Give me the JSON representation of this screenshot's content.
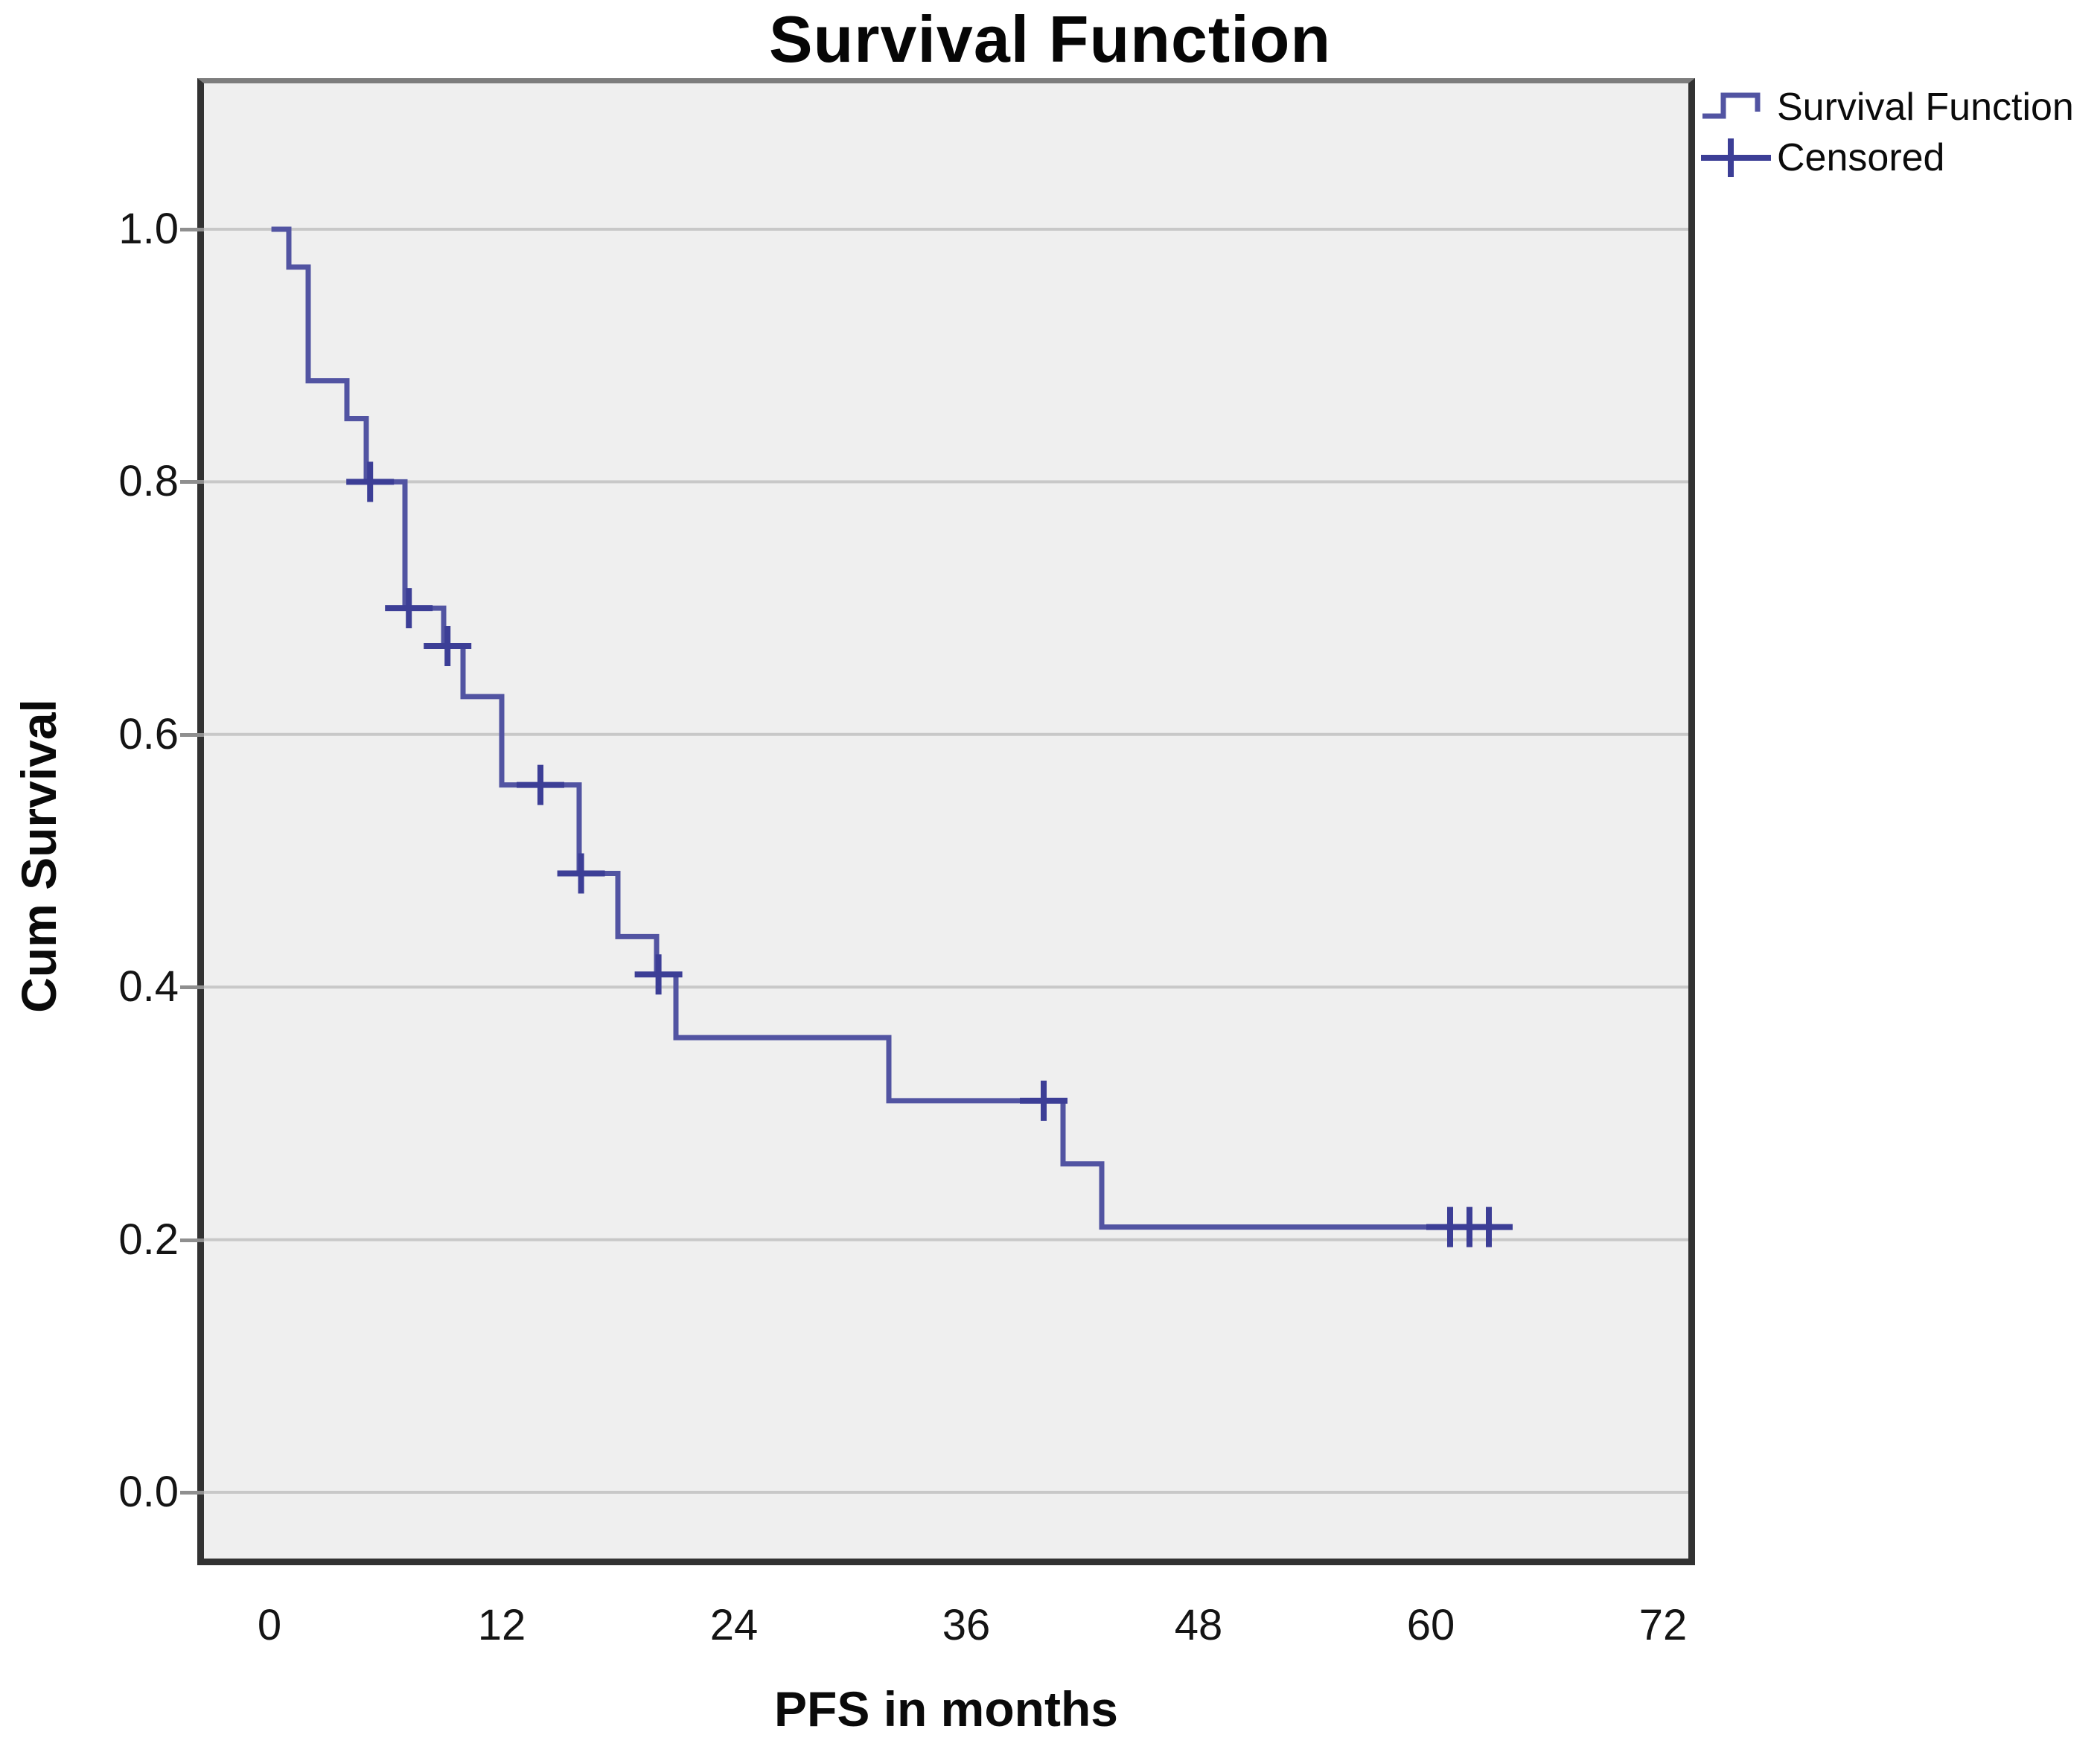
{
  "title": "Survival Function",
  "axes": {
    "x_label": "PFS in months",
    "y_label": "Cum Survival"
  },
  "legend": [
    {
      "label": "Survival Function",
      "marker": "step-line"
    },
    {
      "label": "Censored",
      "marker": "plus"
    }
  ],
  "chart_data": {
    "type": "line",
    "subtype": "kaplan-meier-survival-step",
    "title": "Survival Function",
    "xlabel": "PFS in months",
    "ylabel": "Cum Survival",
    "xlim": [
      0,
      72
    ],
    "ylim": [
      0.0,
      1.0
    ],
    "x_ticks": [
      {
        "label": "0",
        "value": 0
      },
      {
        "label": "12",
        "value": 12
      },
      {
        "label": "24",
        "value": 24
      },
      {
        "label": "36",
        "value": 36
      },
      {
        "label": "48",
        "value": 48
      },
      {
        "label": "60",
        "value": 60
      },
      {
        "label": "72",
        "value": 72
      }
    ],
    "y_ticks": [
      {
        "label": "1.0",
        "value": 1.0
      },
      {
        "label": "0.8",
        "value": 0.8
      },
      {
        "label": "0.6",
        "value": 0.6
      },
      {
        "label": "0.4",
        "value": 0.4
      },
      {
        "label": "0.2",
        "value": 0.2
      },
      {
        "label": "0.0",
        "value": 0.0
      }
    ],
    "grid": "horizontal-only",
    "legend_position": "outside-top-right",
    "plot_background": "#EFEFEF",
    "colors": {
      "line": "#5254A2",
      "censor": "#3C3E96",
      "grid": "#C8C8C8",
      "frame": "#323232",
      "text": "#0B0B0B"
    },
    "series": [
      {
        "name": "Survival Function",
        "type": "step-after",
        "start": {
          "time": 0.1,
          "survival": 1.0
        },
        "steps": [
          [
            1,
            0.97
          ],
          [
            2,
            0.88
          ],
          [
            4,
            0.85
          ],
          [
            5,
            0.8
          ],
          [
            7,
            0.7
          ],
          [
            9,
            0.67
          ],
          [
            10,
            0.63
          ],
          [
            12,
            0.56
          ],
          [
            16,
            0.49
          ],
          [
            18,
            0.44
          ],
          [
            20,
            0.41
          ],
          [
            21,
            0.36
          ],
          [
            32,
            0.31
          ],
          [
            41,
            0.26
          ],
          [
            43,
            0.21
          ]
        ],
        "end_time": 63.5
      },
      {
        "name": "Censored",
        "type": "plus-markers",
        "points": [
          [
            5.2,
            0.8
          ],
          [
            7.2,
            0.7
          ],
          [
            9.2,
            0.67
          ],
          [
            14,
            0.56
          ],
          [
            16.1,
            0.49
          ],
          [
            20.1,
            0.41
          ],
          [
            40,
            0.31
          ],
          [
            61,
            0.21
          ],
          [
            62,
            0.21
          ],
          [
            63,
            0.21
          ]
        ]
      }
    ]
  }
}
